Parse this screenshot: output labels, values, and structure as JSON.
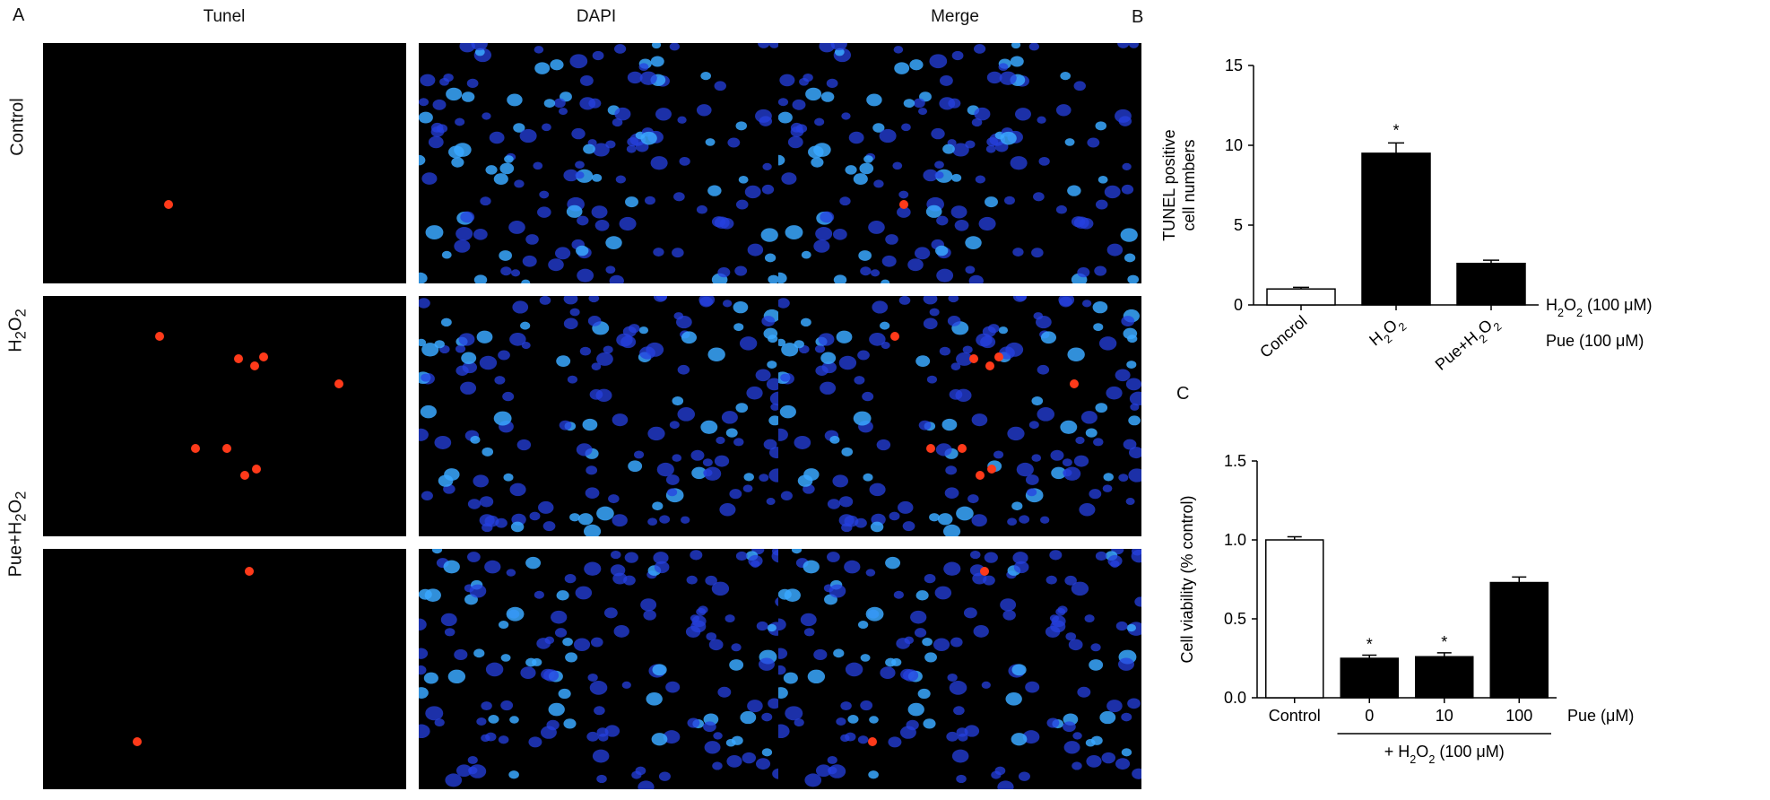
{
  "figure": {
    "panel_letters": [
      "A",
      "B",
      "C"
    ],
    "columns": [
      "Tunel",
      "DAPI",
      "Merge"
    ],
    "rows": [
      {
        "label": "Control",
        "sub": ""
      },
      {
        "label": "H",
        "sub": "2",
        "label2": "O",
        "sub2": "2"
      },
      {
        "label": "Pue+H",
        "sub": "2",
        "label2": "O",
        "sub2": "2"
      }
    ]
  },
  "colors": {
    "bar_black": "#000000",
    "bar_white": "#ffffff",
    "tunel_red": "#ff3a1a",
    "dapi_blue": "#2540e0",
    "dapi_cyan": "#39a8ff"
  },
  "chart_data": [
    {
      "id": "B",
      "type": "bar",
      "categories": [
        "Concrol",
        "H2O2",
        "Pue+H2O2"
      ],
      "values": [
        1.0,
        9.5,
        2.6
      ],
      "errors": [
        0.1,
        0.65,
        0.2
      ],
      "fills": [
        "#ffffff",
        "#000000",
        "#000000"
      ],
      "significance": [
        "",
        "*",
        ""
      ],
      "ylabel_line1": "TUNEL positive",
      "ylabel_line2": "cell numbers",
      "ylim": [
        0,
        15
      ],
      "yticks": [
        0,
        5,
        10,
        15
      ],
      "right_labels": [
        "H2O2 (100 μM)",
        "Pue (100 μM)"
      ]
    },
    {
      "id": "C",
      "type": "bar",
      "categories": [
        "Control",
        "0",
        "10",
        "100"
      ],
      "values": [
        1.0,
        0.25,
        0.26,
        0.73
      ],
      "errors": [
        0.02,
        0.02,
        0.025,
        0.035
      ],
      "fills": [
        "#ffffff",
        "#000000",
        "#000000",
        "#000000"
      ],
      "significance": [
        "",
        "*",
        "*",
        ""
      ],
      "ylabel": "Cell viability (% control)",
      "ylim": [
        0,
        1.5
      ],
      "yticks": [
        "0.0",
        "0.5",
        "1.0",
        "1.5"
      ],
      "right_label": "Pue (μM)",
      "bottom_label": "+ H2O2 (100 μM)"
    }
  ]
}
